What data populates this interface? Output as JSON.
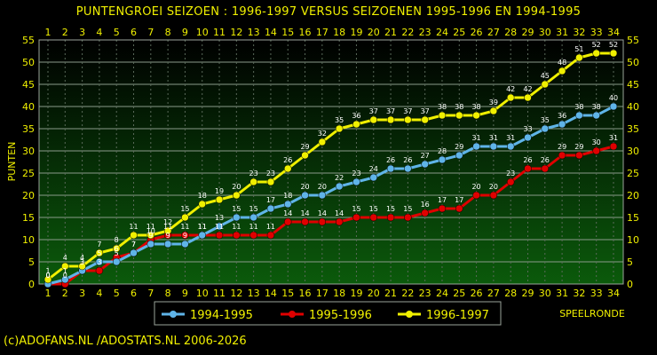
{
  "chart_data": {
    "type": "line",
    "title": "PUNTENGROEI  SEIZOEN : 1996-1997 VERSUS SEIZOENEN 1995-1996 EN 1994-1995",
    "xlabel": "SPEELRONDE",
    "ylabel": "PUNTEN",
    "xlim": [
      1,
      34
    ],
    "ylim": [
      0,
      55
    ],
    "yticks": [
      0,
      5,
      10,
      15,
      20,
      25,
      30,
      35,
      40,
      45,
      50,
      55
    ],
    "grid": true,
    "legend_position": "bottom",
    "x": [
      1,
      2,
      3,
      4,
      5,
      6,
      7,
      8,
      9,
      10,
      11,
      12,
      13,
      14,
      15,
      16,
      17,
      18,
      19,
      20,
      21,
      22,
      23,
      24,
      25,
      26,
      27,
      28,
      29,
      30,
      31,
      32,
      33,
      34
    ],
    "series": [
      {
        "name": "1994-1995",
        "color": "#5fb4e8",
        "values": [
          0,
          1,
          3,
          5,
          5,
          7,
          9,
          9,
          9,
          11,
          13,
          15,
          15,
          17,
          18,
          20,
          20,
          22,
          23,
          24,
          26,
          26,
          27,
          28,
          29,
          31,
          31,
          31,
          33,
          35,
          36,
          38,
          38,
          40
        ]
      },
      {
        "name": "1995-1996",
        "color": "#e00000",
        "values": [
          0,
          0,
          3,
          3,
          6,
          7,
          10,
          11,
          11,
          11,
          11,
          11,
          11,
          11,
          14,
          14,
          14,
          14,
          15,
          15,
          15,
          15,
          16,
          17,
          17,
          20,
          20,
          23,
          26,
          26,
          29,
          29,
          30,
          31
        ]
      },
      {
        "name": "1996-1997",
        "color": "#f0f000",
        "values": [
          1,
          4,
          4,
          7,
          8,
          11,
          11,
          12,
          15,
          18,
          19,
          20,
          23,
          23,
          26,
          29,
          32,
          35,
          36,
          37,
          37,
          37,
          37,
          38,
          38,
          38,
          39,
          42,
          42,
          45,
          48,
          51,
          52,
          52
        ]
      }
    ]
  },
  "footer": {
    "credit": "(c)ADOFANS.NL /ADOSTATS.NL 2006-2026"
  },
  "colors": {
    "background": "#000000",
    "plot_top": "#000000",
    "plot_bottom": "#0b5a0b",
    "text": "#f0f000",
    "grid": "#7a8a7a"
  }
}
